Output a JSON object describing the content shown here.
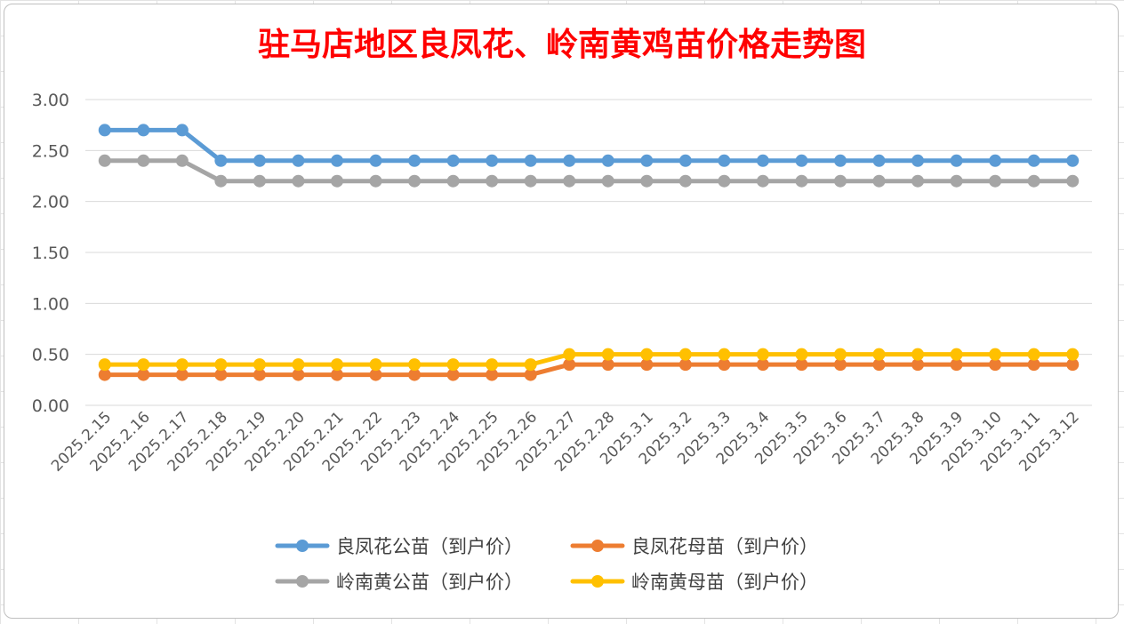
{
  "chart_data": {
    "type": "line",
    "title": "驻马店地区良凤花、岭南黄鸡苗价格走势图",
    "xlabel": "",
    "ylabel": "",
    "ylim": [
      0,
      3
    ],
    "yticks": [
      "0.00",
      "0.50",
      "1.00",
      "1.50",
      "2.00",
      "2.50",
      "3.00"
    ],
    "grid": true,
    "legend_position": "bottom",
    "categories": [
      "2025.2.15",
      "2025.2.16",
      "2025.2.17",
      "2025.2.18",
      "2025.2.19",
      "2025.2.20",
      "2025.2.21",
      "2025.2.22",
      "2025.2.23",
      "2025.2.24",
      "2025.2.25",
      "2025.2.26",
      "2025.2.27",
      "2025.2.28",
      "2025.3.1",
      "2025.3.2",
      "2025.3.3",
      "2025.3.4",
      "2025.3.5",
      "2025.3.6",
      "2025.3.7",
      "2025.3.8",
      "2025.3.9",
      "2025.3.10",
      "2025.3.11",
      "2025.3.12"
    ],
    "series": [
      {
        "name": "良凤花公苗（到户价）",
        "color": "#5b9bd5",
        "values": [
          2.7,
          2.7,
          2.7,
          2.4,
          2.4,
          2.4,
          2.4,
          2.4,
          2.4,
          2.4,
          2.4,
          2.4,
          2.4,
          2.4,
          2.4,
          2.4,
          2.4,
          2.4,
          2.4,
          2.4,
          2.4,
          2.4,
          2.4,
          2.4,
          2.4,
          2.4
        ]
      },
      {
        "name": "良凤花母苗（到户价）",
        "color": "#ed7d31",
        "values": [
          0.3,
          0.3,
          0.3,
          0.3,
          0.3,
          0.3,
          0.3,
          0.3,
          0.3,
          0.3,
          0.3,
          0.3,
          0.4,
          0.4,
          0.4,
          0.4,
          0.4,
          0.4,
          0.4,
          0.4,
          0.4,
          0.4,
          0.4,
          0.4,
          0.4,
          0.4
        ]
      },
      {
        "name": "岭南黄公苗（到户价）",
        "color": "#a5a5a5",
        "values": [
          2.4,
          2.4,
          2.4,
          2.2,
          2.2,
          2.2,
          2.2,
          2.2,
          2.2,
          2.2,
          2.2,
          2.2,
          2.2,
          2.2,
          2.2,
          2.2,
          2.2,
          2.2,
          2.2,
          2.2,
          2.2,
          2.2,
          2.2,
          2.2,
          2.2,
          2.2
        ]
      },
      {
        "name": "岭南黄母苗（到户价）",
        "color": "#ffc000",
        "values": [
          0.4,
          0.4,
          0.4,
          0.4,
          0.4,
          0.4,
          0.4,
          0.4,
          0.4,
          0.4,
          0.4,
          0.4,
          0.5,
          0.5,
          0.5,
          0.5,
          0.5,
          0.5,
          0.5,
          0.5,
          0.5,
          0.5,
          0.5,
          0.5,
          0.5,
          0.5
        ]
      }
    ]
  }
}
